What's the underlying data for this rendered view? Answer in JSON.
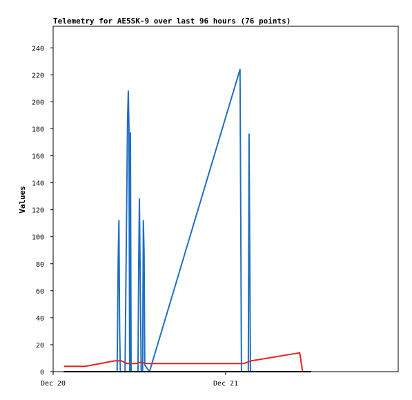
{
  "chart_data": {
    "type": "line",
    "title": "Telemetry for AE5SK-9 over last 96 hours (76 points)",
    "xlabel": "",
    "ylabel": "Values",
    "ylim": [
      0,
      256
    ],
    "yticks": [
      0,
      20,
      40,
      60,
      80,
      100,
      120,
      140,
      160,
      180,
      200,
      220,
      240
    ],
    "xlim_hours": [
      0,
      48
    ],
    "xticks": [
      {
        "label": "Dec 20",
        "hour": 0
      },
      {
        "label": "Dec 21",
        "hour": 24
      }
    ],
    "grid": false,
    "legend": "none",
    "series": [
      {
        "color": "#1f6fc0",
        "points": [
          [
            8.9,
            0
          ],
          [
            9.05,
            85
          ],
          [
            9.15,
            112
          ],
          [
            9.25,
            30
          ],
          [
            9.35,
            0
          ],
          [
            10.0,
            0
          ],
          [
            10.2,
            110
          ],
          [
            10.35,
            185
          ],
          [
            10.45,
            208
          ],
          [
            10.55,
            180
          ],
          [
            10.65,
            0
          ],
          [
            10.75,
            177
          ],
          [
            10.85,
            0
          ],
          [
            11.8,
            0
          ],
          [
            11.9,
            80
          ],
          [
            12.0,
            128
          ],
          [
            12.15,
            50
          ],
          [
            12.25,
            0
          ],
          [
            12.45,
            0
          ],
          [
            12.55,
            112
          ],
          [
            12.65,
            88
          ],
          [
            12.75,
            5
          ],
          [
            13.4,
            0
          ],
          [
            26.0,
            224
          ],
          [
            26.1,
            112
          ],
          [
            26.2,
            0
          ],
          [
            27.15,
            0
          ],
          [
            27.25,
            176
          ],
          [
            27.35,
            88
          ],
          [
            27.45,
            0
          ]
        ]
      },
      {
        "color": "#e8201a",
        "points": [
          [
            1.5,
            4
          ],
          [
            4.5,
            4
          ],
          [
            8.5,
            8
          ],
          [
            9.5,
            8
          ],
          [
            10.3,
            6
          ],
          [
            11.5,
            6
          ],
          [
            12.2,
            7
          ],
          [
            13.0,
            6
          ],
          [
            26.5,
            6
          ],
          [
            27.5,
            8
          ],
          [
            34.3,
            14
          ],
          [
            34.7,
            0
          ]
        ]
      },
      {
        "color": "#000000",
        "points": [
          [
            1.5,
            0
          ],
          [
            35.9,
            0
          ]
        ]
      }
    ]
  }
}
